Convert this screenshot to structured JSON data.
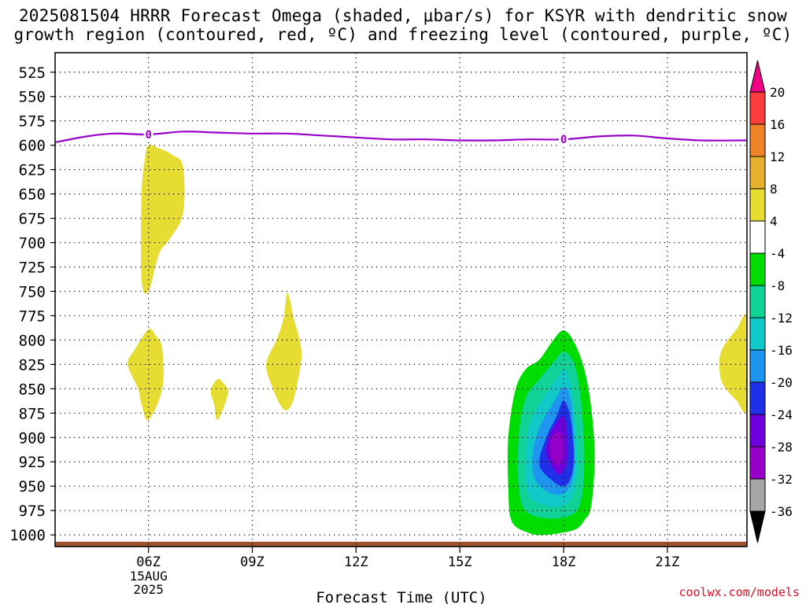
{
  "title_line1": "2025081504 HRRR Forecast Omega (shaded, μbar/s) for KSYR with dendritic snow",
  "title_line2": "growth region (contoured, red, ºC) and freezing level (contoured, purple, ºC)",
  "credit": "coolwx.com/models",
  "chart_data": {
    "type": "contour",
    "title": "2025081504 HRRR Forecast Omega (shaded, μbar/s) for KSYR with dendritic snow growth region (contoured, red, ºC) and freezing level (contoured, purple, ºC)",
    "xlabel": "Forecast Time (UTC)",
    "ylabel": "",
    "x_range_hours_utc": [
      3.3,
      23.3
    ],
    "y_range_hpa": [
      505,
      1012
    ],
    "y_ticks": [
      525,
      550,
      575,
      600,
      625,
      650,
      675,
      700,
      725,
      750,
      775,
      800,
      825,
      850,
      875,
      900,
      925,
      950,
      975,
      1000
    ],
    "x_ticks": [
      {
        "hour": 6,
        "label": "06Z"
      },
      {
        "hour": 9,
        "label": "09Z"
      },
      {
        "hour": 12,
        "label": "12Z"
      },
      {
        "hour": 15,
        "label": "15Z"
      },
      {
        "hour": 18,
        "label": "18Z"
      },
      {
        "hour": 21,
        "label": "21Z"
      }
    ],
    "date_label": [
      "15AUG",
      "2025"
    ],
    "grid": true,
    "colorbar": {
      "levels": [
        -36,
        -32,
        -28,
        -24,
        -20,
        -16,
        -12,
        -8,
        -4,
        4,
        8,
        12,
        16,
        20
      ],
      "colors": [
        "#000000",
        "#a6a6a6",
        "#9600c8",
        "#6e00dc",
        "#2030e8",
        "#1e96f0",
        "#10c8c8",
        "#10d296",
        "#00dc00",
        "#ffffff",
        "#e6dc32",
        "#e6af2d",
        "#f08228",
        "#fa3c3c",
        "#f00082"
      ]
    },
    "freezing_level": {
      "color": "#9600c8",
      "label": "0",
      "label_hours": [
        6.0,
        18.0
      ],
      "points": [
        [
          3.3,
          597
        ],
        [
          4.2,
          591
        ],
        [
          5.0,
          588
        ],
        [
          6.0,
          589
        ],
        [
          7.0,
          586
        ],
        [
          8.0,
          587
        ],
        [
          9.0,
          588
        ],
        [
          10.0,
          588
        ],
        [
          11.0,
          590
        ],
        [
          12.0,
          592
        ],
        [
          13.0,
          594
        ],
        [
          14.0,
          594
        ],
        [
          15.0,
          595
        ],
        [
          16.0,
          595
        ],
        [
          17.0,
          594
        ],
        [
          18.0,
          594
        ],
        [
          19.0,
          591
        ],
        [
          20.0,
          590
        ],
        [
          21.0,
          593
        ],
        [
          22.0,
          595
        ],
        [
          23.3,
          595
        ]
      ]
    },
    "shaded_regions": [
      {
        "level": "4 to 8",
        "color": "#e6dc32",
        "points": [
          [
            6.0,
            600
          ],
          [
            6.3,
            603
          ],
          [
            6.7,
            610
          ],
          [
            7.0,
            622
          ],
          [
            7.0,
            670
          ],
          [
            6.6,
            697
          ],
          [
            6.3,
            712
          ],
          [
            6.0,
            750
          ],
          [
            5.8,
            738
          ],
          [
            5.8,
            650
          ],
          [
            5.9,
            613
          ]
        ]
      },
      {
        "level": "4 to 8",
        "color": "#e6dc32",
        "points": [
          [
            6.0,
            789
          ],
          [
            6.2,
            795
          ],
          [
            6.4,
            809
          ],
          [
            6.4,
            850
          ],
          [
            6.0,
            882
          ],
          [
            5.8,
            866
          ],
          [
            5.7,
            850
          ],
          [
            5.4,
            825
          ],
          [
            5.6,
            810
          ]
        ]
      },
      {
        "level": "4 to 8",
        "color": "#e6dc32",
        "points": [
          [
            8.0,
            840
          ],
          [
            8.2,
            846
          ],
          [
            8.3,
            855
          ],
          [
            8.0,
            882
          ],
          [
            7.9,
            866
          ],
          [
            7.8,
            852
          ]
        ]
      },
      {
        "level": "4 to 8",
        "color": "#e6dc32",
        "points": [
          [
            10.0,
            752
          ],
          [
            10.1,
            760
          ],
          [
            10.2,
            778
          ],
          [
            10.4,
            805
          ],
          [
            10.4,
            825
          ],
          [
            10.2,
            860
          ],
          [
            10.0,
            872
          ],
          [
            9.8,
            866
          ],
          [
            9.6,
            850
          ],
          [
            9.4,
            825
          ],
          [
            9.7,
            800
          ],
          [
            9.9,
            778
          ]
        ]
      },
      {
        "level": "4 to 8",
        "color": "#e6dc32",
        "points": [
          [
            23.3,
            778
          ],
          [
            23.3,
            870
          ],
          [
            23.0,
            862
          ],
          [
            22.6,
            845
          ],
          [
            22.5,
            825
          ],
          [
            22.6,
            808
          ],
          [
            23.0,
            789
          ]
        ]
      },
      {
        "level": "-8 to -4",
        "color": "#00dc00",
        "points": [
          [
            18.0,
            790
          ],
          [
            18.3,
            802
          ],
          [
            18.6,
            830
          ],
          [
            18.8,
            870
          ],
          [
            18.9,
            920
          ],
          [
            18.8,
            970
          ],
          [
            18.6,
            985
          ],
          [
            18.3,
            995
          ],
          [
            17.5,
            1000
          ],
          [
            17.0,
            998
          ],
          [
            16.5,
            986
          ],
          [
            16.4,
            950
          ],
          [
            16.4,
            900
          ],
          [
            16.6,
            852
          ],
          [
            16.9,
            830
          ],
          [
            17.3,
            820
          ],
          [
            17.7,
            800
          ]
        ]
      },
      {
        "level": "-12 to -8",
        "color": "#10d296",
        "points": [
          [
            18.0,
            812
          ],
          [
            18.3,
            824
          ],
          [
            18.5,
            860
          ],
          [
            18.6,
            920
          ],
          [
            18.5,
            965
          ],
          [
            18.2,
            980
          ],
          [
            17.5,
            983
          ],
          [
            16.9,
            975
          ],
          [
            16.7,
            950
          ],
          [
            16.7,
            900
          ],
          [
            16.9,
            860
          ],
          [
            17.3,
            840
          ],
          [
            17.7,
            823
          ]
        ]
      },
      {
        "level": "-16 to -12",
        "color": "#10c8c8",
        "points": [
          [
            18.0,
            830
          ],
          [
            18.2,
            842
          ],
          [
            18.3,
            870
          ],
          [
            18.4,
            920
          ],
          [
            18.3,
            955
          ],
          [
            18.0,
            970
          ],
          [
            17.5,
            970
          ],
          [
            17.0,
            960
          ],
          [
            16.9,
            930
          ],
          [
            17.0,
            890
          ],
          [
            17.4,
            860
          ],
          [
            17.8,
            840
          ]
        ]
      },
      {
        "level": "-20 to -16",
        "color": "#1e96f0",
        "points": [
          [
            18.0,
            848
          ],
          [
            18.2,
            860
          ],
          [
            18.3,
            900
          ],
          [
            18.3,
            935
          ],
          [
            18.1,
            955
          ],
          [
            17.7,
            958
          ],
          [
            17.2,
            945
          ],
          [
            17.1,
            920
          ],
          [
            17.3,
            890
          ],
          [
            17.7,
            865
          ]
        ]
      },
      {
        "level": "-24 to -20",
        "color": "#2030e8",
        "points": [
          [
            18.0,
            862
          ],
          [
            18.2,
            880
          ],
          [
            18.3,
            920
          ],
          [
            18.2,
            942
          ],
          [
            18.0,
            950
          ],
          [
            17.7,
            945
          ],
          [
            17.3,
            928
          ],
          [
            17.5,
            900
          ],
          [
            17.8,
            878
          ]
        ]
      },
      {
        "level": "-28 to -24",
        "color": "#6e00dc",
        "points": [
          [
            18.0,
            878
          ],
          [
            18.1,
            895
          ],
          [
            18.1,
            925
          ],
          [
            17.9,
            938
          ],
          [
            17.7,
            932
          ],
          [
            17.5,
            915
          ],
          [
            17.6,
            897
          ],
          [
            17.8,
            885
          ]
        ]
      },
      {
        "level": "-32 to -28",
        "color": "#9600c8",
        "points": [
          [
            17.9,
            895
          ],
          [
            18.0,
            910
          ],
          [
            17.9,
            928
          ],
          [
            17.7,
            925
          ],
          [
            17.6,
            910
          ],
          [
            17.7,
            898
          ]
        ]
      }
    ],
    "terrain": {
      "color": "#a0522d",
      "top_hpa": 1007
    }
  }
}
